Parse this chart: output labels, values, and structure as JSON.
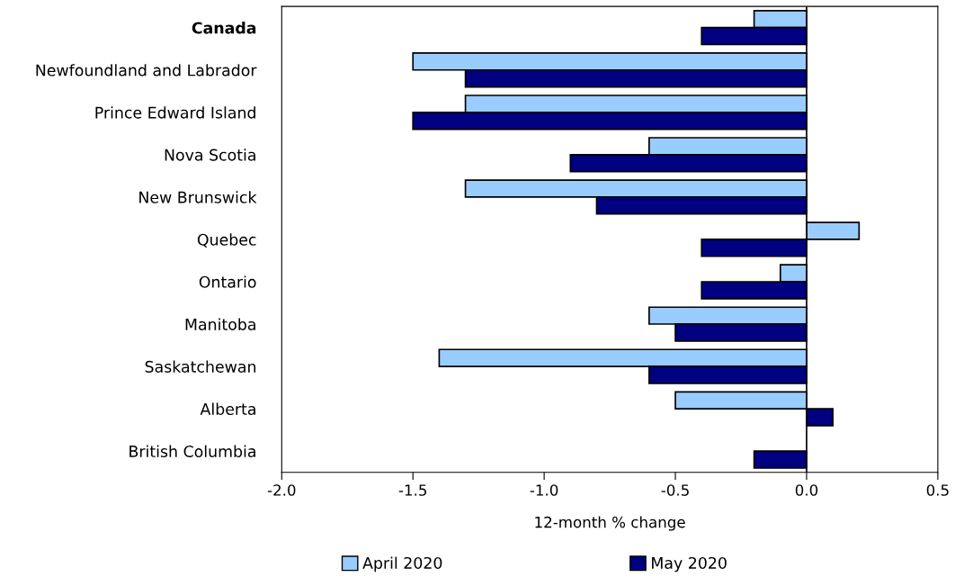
{
  "chart_data": {
    "type": "bar",
    "orientation": "horizontal",
    "categories": [
      "Canada",
      "Newfoundland and Labrador",
      "Prince Edward Island",
      "Nova Scotia",
      "New Brunswick",
      "Quebec",
      "Ontario",
      "Manitoba",
      "Saskatchewan",
      "Alberta",
      "British Columbia"
    ],
    "series": [
      {
        "name": "April 2020",
        "color": "#99ccff",
        "values": [
          -0.2,
          -1.5,
          -1.3,
          -0.6,
          -1.3,
          0.2,
          -0.1,
          -0.6,
          -1.4,
          -0.5,
          null
        ]
      },
      {
        "name": "May 2020",
        "color": "#000080",
        "values": [
          -0.4,
          -1.3,
          -1.5,
          -0.9,
          -0.8,
          -0.4,
          -0.4,
          -0.5,
          -0.6,
          0.1,
          -0.2
        ]
      }
    ],
    "xlabel": "12-month % change",
    "xlim": [
      -2.0,
      0.5
    ],
    "xticks": [
      {
        "value": -2.0,
        "label": "-2.0"
      },
      {
        "value": -1.5,
        "label": "-1.5"
      },
      {
        "value": -1.0,
        "label": "-1.0"
      },
      {
        "value": -0.5,
        "label": "-0.5"
      },
      {
        "value": 0.0,
        "label": "0.0"
      },
      {
        "value": 0.5,
        "label": "0.5"
      }
    ],
    "ref_lines": [
      {
        "axis": "x",
        "value": 0.0,
        "color": "#000000"
      }
    ],
    "legend": "bottom",
    "grid": false
  }
}
